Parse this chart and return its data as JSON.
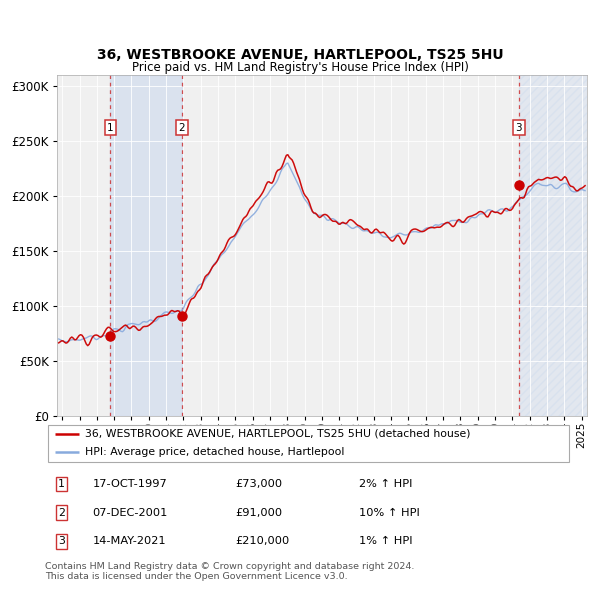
{
  "title": "36, WESTBROOKE AVENUE, HARTLEPOOL, TS25 5HU",
  "subtitle": "Price paid vs. HM Land Registry's House Price Index (HPI)",
  "legend_line1": "36, WESTBROOKE AVENUE, HARTLEPOOL, TS25 5HU (detached house)",
  "legend_line2": "HPI: Average price, detached house, Hartlepool",
  "sale1_date": "17-OCT-1997",
  "sale1_price": 73000,
  "sale1_hpi": "2% ↑ HPI",
  "sale2_date": "07-DEC-2001",
  "sale2_price": 91000,
  "sale2_hpi": "10% ↑ HPI",
  "sale3_date": "14-MAY-2021",
  "sale3_price": 210000,
  "sale3_hpi": "1% ↑ HPI",
  "footnote1": "Contains HM Land Registry data © Crown copyright and database right 2024.",
  "footnote2": "This data is licensed under the Open Government Licence v3.0.",
  "price_color": "#cc0000",
  "hpi_color": "#88aadd",
  "background_color": "#ffffff",
  "plot_bg_color": "#f0f0f0",
  "ylim": [
    0,
    310000
  ],
  "sale1_year": 1997.79,
  "sale2_year": 2001.92,
  "sale3_year": 2021.37,
  "xmin": 1994.7,
  "xmax": 2025.3
}
